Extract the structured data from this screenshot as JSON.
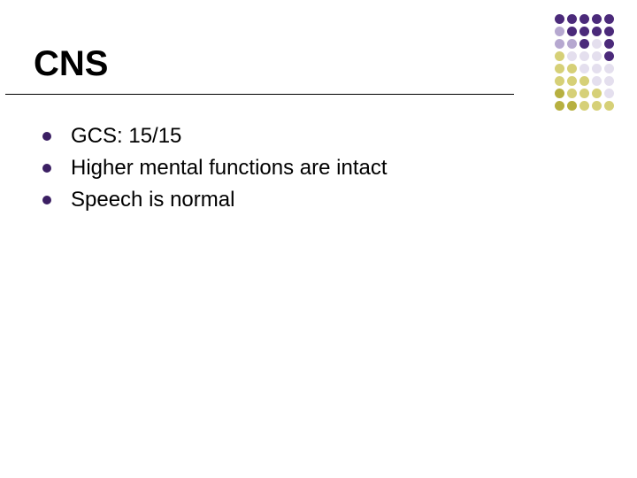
{
  "title": "CNS",
  "title_fontsize": 40,
  "title_color": "#000000",
  "background_color": "#ffffff",
  "underline_color": "#000000",
  "bullets": {
    "color": "#3b1f63",
    "text_color": "#000000",
    "text_fontsize": 24,
    "items": [
      "GCS: 15/15",
      "Higher mental functions are intact",
      "Speech is normal"
    ]
  },
  "decoration": {
    "rows": 8,
    "cols": 5,
    "colors": [
      [
        "#4b2a7a",
        "#4b2a7a",
        "#4b2a7a",
        "#4b2a7a",
        "#4b2a7a"
      ],
      [
        "#b6a8d0",
        "#4b2a7a",
        "#4b2a7a",
        "#4b2a7a",
        "#4b2a7a"
      ],
      [
        "#b6a8d0",
        "#b6a8d0",
        "#4b2a7a",
        "#e4dfee",
        "#4b2a7a"
      ],
      [
        "#d6d077",
        "#e4dfee",
        "#e4dfee",
        "#e4dfee",
        "#4b2a7a"
      ],
      [
        "#d6d077",
        "#d6d077",
        "#e4dfee",
        "#e4dfee",
        "#e4dfee"
      ],
      [
        "#d6d077",
        "#d6d077",
        "#d6d077",
        "#e4dfee",
        "#e4dfee"
      ],
      [
        "#b7b040",
        "#d6d077",
        "#d6d077",
        "#d6d077",
        "#e4dfee"
      ],
      [
        "#b7b040",
        "#b7b040",
        "#d6d077",
        "#d6d077",
        "#d6d077"
      ]
    ]
  }
}
